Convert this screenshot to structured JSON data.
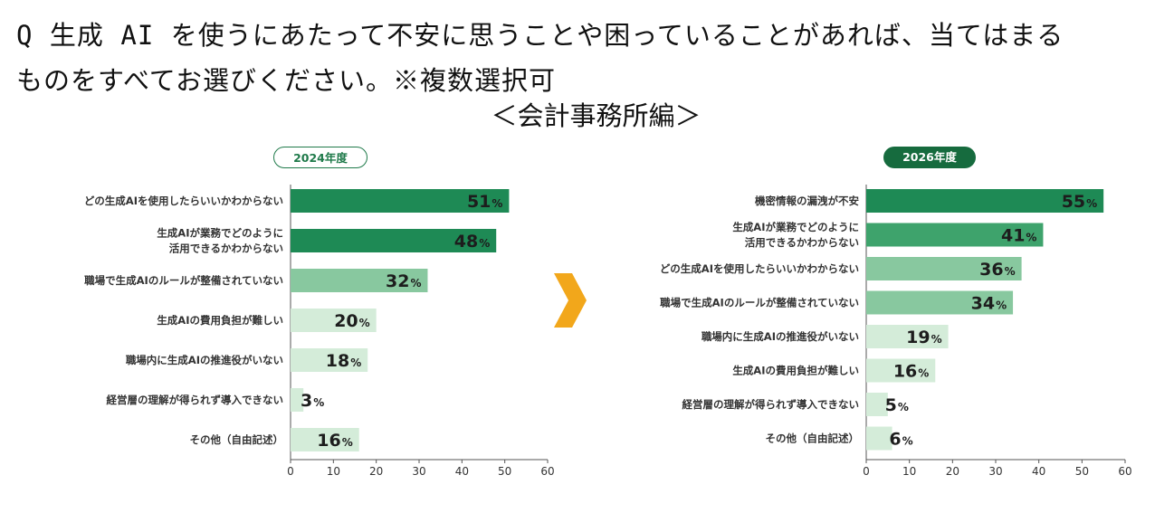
{
  "question": {
    "line1": "Q 生成 AI を使うにあたって不安に思うことや困っていることがあれば、当てはまる",
    "line2": "ものをすべてお選びください。※複数選択可",
    "subtitle": "＜会計事務所編＞"
  },
  "colors": {
    "dark": "#1e8a55",
    "medium": "#3ea36c",
    "light": "#88c89f",
    "pale": "#d4ecd9",
    "arrow": "#f2a71b"
  },
  "chart_data": [
    {
      "type": "bar",
      "orientation": "horizontal",
      "title": "2024年度",
      "categories": [
        "どの生成AIを使用したらいいかわからない",
        "生成AIが業務でどのように\n活用できるかわからない",
        "職場で生成AIのルールが整備されていない",
        "生成AIの費用負担が難しい",
        "職場内に生成AIの推進役がいない",
        "経営層の理解が得られず導入できない",
        "その他（自由記述）"
      ],
      "values": [
        51,
        48,
        32,
        20,
        18,
        3,
        16
      ],
      "unit": "%",
      "xlim": [
        0,
        60
      ],
      "xticks": [
        0,
        10,
        20,
        30,
        40,
        50,
        60
      ]
    },
    {
      "type": "bar",
      "orientation": "horizontal",
      "title": "2026年度",
      "categories": [
        "機密情報の漏洩が不安",
        "生成AIが業務でどのように\n活用できるかわからない",
        "どの生成AIを使用したらいいかわからない",
        "職場で生成AIのルールが整備されていない",
        "職場内に生成AIの推進役がいない",
        "生成AIの費用負担が難しい",
        "経営層の理解が得られず導入できない",
        "その他（自由記述）"
      ],
      "values": [
        55,
        41,
        36,
        34,
        19,
        16,
        5,
        6
      ],
      "unit": "%",
      "xlim": [
        0,
        60
      ],
      "xticks": [
        0,
        10,
        20,
        30,
        40,
        50,
        60
      ]
    }
  ]
}
